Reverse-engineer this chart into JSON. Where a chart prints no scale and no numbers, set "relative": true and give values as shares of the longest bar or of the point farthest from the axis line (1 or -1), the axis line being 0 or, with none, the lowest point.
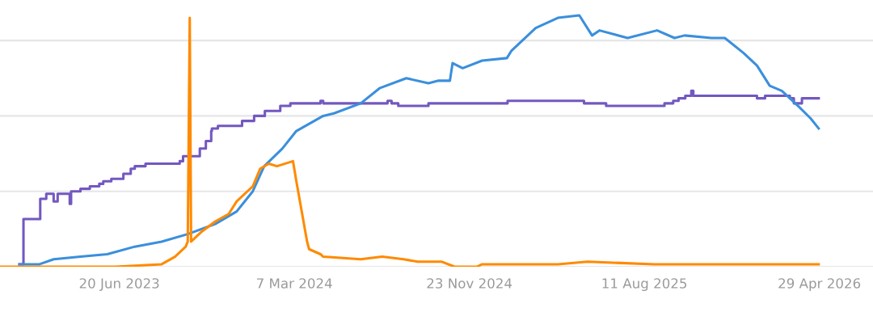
{
  "chart_data": {
    "type": "line",
    "relative": true,
    "grid": "y",
    "legend": false,
    "tick_labels": "x",
    "marker": "none",
    "line_style": "solid",
    "xlim": [
      "2022-12-24",
      "2026-07-18"
    ],
    "xticks": [
      {
        "value": "2023-06-20",
        "label": "20 Jun 2023"
      },
      {
        "value": "2024-03-07",
        "label": "7 Mar 2024"
      },
      {
        "value": "2024-11-23",
        "label": "23 Nov 2024"
      },
      {
        "value": "2025-08-11",
        "label": "11 Aug 2025"
      },
      {
        "value": "2026-04-29",
        "label": "29 Apr 2026"
      }
    ],
    "series": [
      {
        "type": "step",
        "color": "#7358c0",
        "x": [
          "2023-01-22",
          "2023-01-28",
          "2023-02-22",
          "2023-03-03",
          "2023-03-14",
          "2023-03-20",
          "2023-04-07",
          "2023-04-09",
          "2023-04-23",
          "2023-05-07",
          "2023-05-21",
          "2023-05-27",
          "2023-06-08",
          "2023-06-26",
          "2023-07-07",
          "2023-07-13",
          "2023-07-29",
          "2023-08-18",
          "2023-09-18",
          "2023-09-23",
          "2023-10-09",
          "2023-10-18",
          "2023-10-27",
          "2023-11-04",
          "2023-11-05",
          "2023-11-14",
          "2023-12-20",
          "2024-01-07",
          "2024-01-23",
          "2024-02-15",
          "2024-03-01",
          "2024-04-15",
          "2024-04-19",
          "2024-07-24",
          "2024-07-30",
          "2024-08-09",
          "2024-09-23",
          "2025-01-19",
          "2025-05-13",
          "2025-06-15",
          "2025-09-10",
          "2025-09-23",
          "2025-10-01",
          "2025-10-11",
          "2025-10-20",
          "2025-10-23",
          "2026-01-26",
          "2026-02-07",
          "2026-03-16",
          "2026-03-22",
          "2026-04-03",
          "2026-04-28"
        ],
        "values": [
          0.01,
          0.19,
          0.27,
          0.29,
          0.26,
          0.29,
          0.25,
          0.3,
          0.31,
          0.32,
          0.33,
          0.34,
          0.35,
          0.37,
          0.39,
          0.4,
          0.41,
          0.41,
          0.42,
          0.44,
          0.44,
          0.47,
          0.5,
          0.54,
          0.55,
          0.56,
          0.58,
          0.6,
          0.62,
          0.64,
          0.65,
          0.66,
          0.65,
          0.66,
          0.65,
          0.64,
          0.65,
          0.66,
          0.65,
          0.64,
          0.65,
          0.66,
          0.67,
          0.68,
          0.7,
          0.68,
          0.67,
          0.68,
          0.67,
          0.65,
          0.67,
          0.67
        ]
      },
      {
        "color": "#3b8fdc",
        "x": [
          "2023-01-22",
          "2023-02-21",
          "2023-03-14",
          "2023-04-23",
          "2023-06-02",
          "2023-07-13",
          "2023-08-22",
          "2023-09-30",
          "2023-11-10",
          "2023-12-12",
          "2024-01-05",
          "2024-01-22",
          "2024-02-18",
          "2024-03-10",
          "2024-04-19",
          "2024-05-05",
          "2024-06-14",
          "2024-07-12",
          "2024-08-21",
          "2024-09-23",
          "2024-10-08",
          "2024-10-25",
          "2024-10-29",
          "2024-11-13",
          "2024-12-12",
          "2025-01-18",
          "2025-01-25",
          "2025-03-02",
          "2025-04-04",
          "2025-05-06",
          "2025-05-25",
          "2025-06-05",
          "2025-07-17",
          "2025-08-30",
          "2025-09-25",
          "2025-10-10",
          "2025-11-19",
          "2025-12-09",
          "2026-01-06",
          "2026-01-26",
          "2026-02-14",
          "2026-03-04",
          "2026-03-28",
          "2026-04-16",
          "2026-04-28"
        ],
        "values": [
          0.01,
          0.01,
          0.03,
          0.04,
          0.05,
          0.08,
          0.1,
          0.13,
          0.17,
          0.22,
          0.3,
          0.4,
          0.47,
          0.54,
          0.6,
          0.61,
          0.65,
          0.71,
          0.75,
          0.73,
          0.74,
          0.74,
          0.81,
          0.79,
          0.82,
          0.83,
          0.86,
          0.95,
          0.99,
          1,
          0.92,
          0.94,
          0.91,
          0.94,
          0.91,
          0.92,
          0.91,
          0.91,
          0.85,
          0.8,
          0.72,
          0.7,
          0.64,
          0.59,
          0.55
        ]
      },
      {
        "color": "#ff8a00",
        "x": [
          "2022-12-24",
          "2023-06-14",
          "2023-08-22",
          "2023-09-11",
          "2023-09-27",
          "2023-09-30",
          "2023-10-03",
          "2023-10-05",
          "2023-10-21",
          "2023-11-10",
          "2023-11-30",
          "2023-12-12",
          "2024-01-05",
          "2024-01-16",
          "2024-01-29",
          "2024-02-10",
          "2024-03-05",
          "2024-03-10",
          "2024-03-26",
          "2024-03-29",
          "2024-04-15",
          "2024-04-19",
          "2024-06-14",
          "2024-07-16",
          "2024-08-17",
          "2024-09-07",
          "2024-10-13",
          "2024-11-01",
          "2024-12-04",
          "2024-12-12",
          "2025-04-04",
          "2025-05-18",
          "2025-08-26",
          "2026-04-28"
        ],
        "values": [
          0,
          0,
          0.01,
          0.04,
          0.08,
          0.1,
          0.99,
          0.1,
          0.14,
          0.18,
          0.21,
          0.26,
          0.32,
          0.39,
          0.41,
          0.4,
          0.42,
          0.34,
          0.1,
          0.07,
          0.05,
          0.04,
          0.03,
          0.04,
          0.03,
          0.02,
          0.02,
          0,
          0,
          0.01,
          0.01,
          0.02,
          0.01,
          0.01
        ]
      }
    ]
  }
}
